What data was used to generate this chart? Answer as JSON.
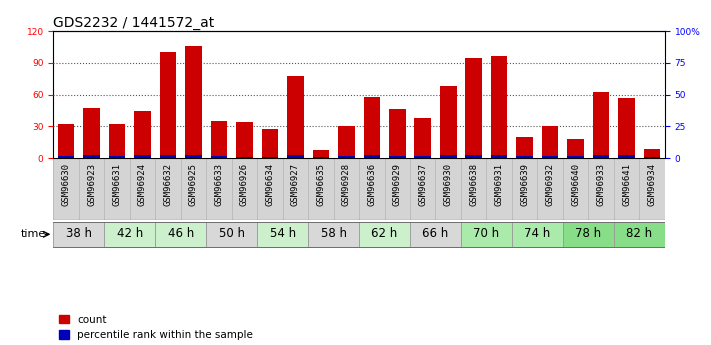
{
  "title": "GDS2232 / 1441572_at",
  "samples": [
    "GSM96630",
    "GSM96923",
    "GSM96631",
    "GSM96924",
    "GSM96632",
    "GSM96925",
    "GSM96633",
    "GSM96926",
    "GSM96634",
    "GSM96927",
    "GSM96635",
    "GSM96928",
    "GSM96636",
    "GSM96929",
    "GSM96637",
    "GSM96930",
    "GSM96638",
    "GSM96931",
    "GSM96639",
    "GSM96932",
    "GSM96640",
    "GSM96933",
    "GSM96641",
    "GSM96934"
  ],
  "count_values": [
    32,
    47,
    32,
    44,
    100,
    106,
    35,
    34,
    27,
    78,
    8,
    30,
    58,
    46,
    38,
    68,
    95,
    96,
    20,
    30,
    18,
    62,
    57,
    9
  ],
  "percentile_values": [
    2,
    3,
    2,
    3,
    3,
    3,
    2,
    1,
    1,
    3,
    1,
    2,
    3,
    2,
    2,
    3,
    3,
    3,
    2,
    2,
    2,
    3,
    3,
    1
  ],
  "time_groups": [
    {
      "label": "38 h",
      "start": 0,
      "end": 2,
      "color": "#d8d8d8"
    },
    {
      "label": "42 h",
      "start": 2,
      "end": 4,
      "color": "#ccf0cc"
    },
    {
      "label": "46 h",
      "start": 4,
      "end": 6,
      "color": "#ccf0cc"
    },
    {
      "label": "50 h",
      "start": 6,
      "end": 8,
      "color": "#d8d8d8"
    },
    {
      "label": "54 h",
      "start": 8,
      "end": 10,
      "color": "#ccf0cc"
    },
    {
      "label": "58 h",
      "start": 10,
      "end": 12,
      "color": "#d8d8d8"
    },
    {
      "label": "62 h",
      "start": 12,
      "end": 14,
      "color": "#ccf0cc"
    },
    {
      "label": "66 h",
      "start": 14,
      "end": 16,
      "color": "#d8d8d8"
    },
    {
      "label": "70 h",
      "start": 16,
      "end": 18,
      "color": "#aaeaaa"
    },
    {
      "label": "74 h",
      "start": 18,
      "end": 20,
      "color": "#aaeaaa"
    },
    {
      "label": "78 h",
      "start": 20,
      "end": 22,
      "color": "#88dd88"
    },
    {
      "label": "82 h",
      "start": 22,
      "end": 24,
      "color": "#88dd88"
    }
  ],
  "bar_color": "#cc0000",
  "percentile_color": "#0000bb",
  "ylim_left": [
    0,
    120
  ],
  "ylim_right": [
    0,
    100
  ],
  "yticks_left": [
    0,
    30,
    60,
    90,
    120
  ],
  "yticks_right": [
    0,
    25,
    50,
    75,
    100
  ],
  "ytick_labels_right": [
    "0",
    "25",
    "50",
    "75",
    "100%"
  ],
  "title_fontsize": 10,
  "tick_fontsize": 6.5,
  "label_fontsize": 7.5,
  "bar_width": 0.65,
  "sample_bg_color": "#d4d4d4",
  "plot_bg_color": "#ffffff",
  "time_label_fontsize": 8.5
}
